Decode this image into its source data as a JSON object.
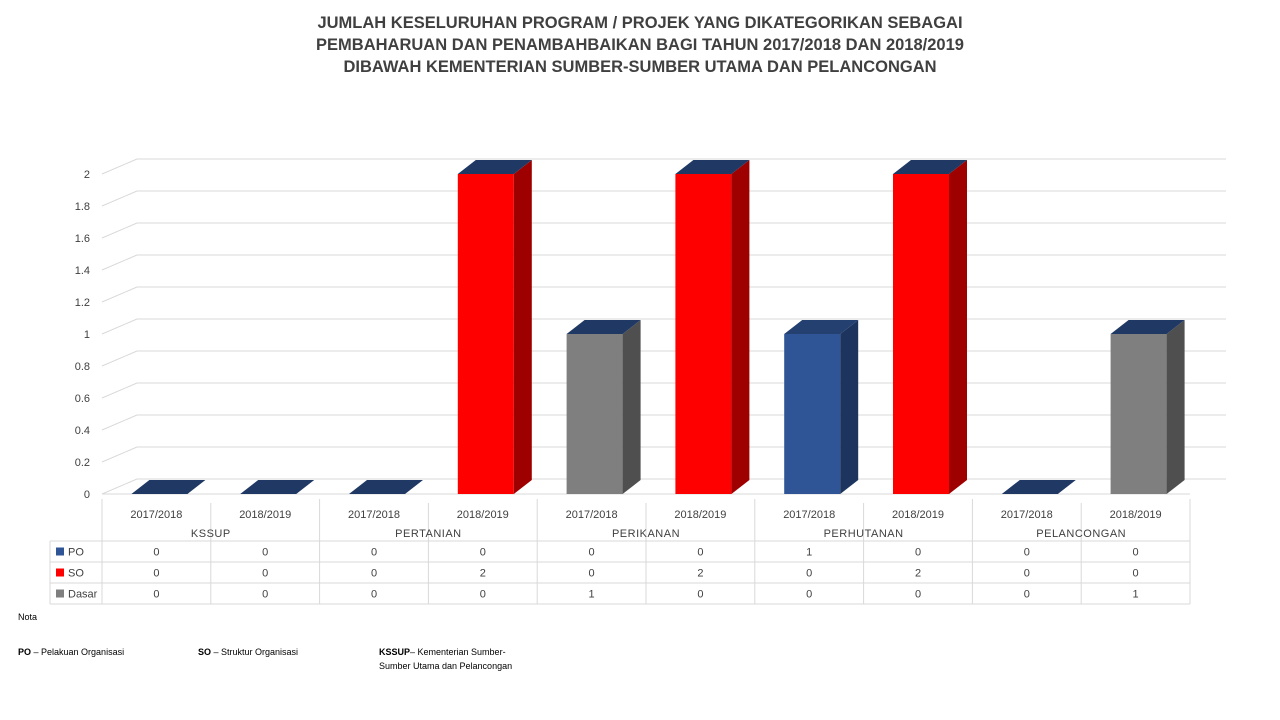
{
  "chart_data": {
    "type": "bar",
    "title_lines": [
      "JUMLAH KESELURUHAN PROGRAM / PROJEK  YANG DIKATEGORIKAN SEBAGAI",
      "PEMBAHARUAN DAN PENAMBAHBAIKAN BAGI TAHUN 2017/2018 DAN 2018/2019",
      "DIBAWAH KEMENTERIAN SUMBER-SUMBER UTAMA DAN PELANCONGAN"
    ],
    "groups": [
      "KSSUP",
      "PERTANIAN",
      "PERIKANAN",
      "PERHUTANAN",
      "PELANCONGAN"
    ],
    "categories": [
      "2017/2018",
      "2018/2019",
      "2017/2018",
      "2018/2019",
      "2017/2018",
      "2018/2019",
      "2017/2018",
      "2018/2019",
      "2017/2018",
      "2018/2019"
    ],
    "series": [
      {
        "name": "PO",
        "color": "#2f5597",
        "values": [
          0,
          0,
          0,
          0,
          0,
          0,
          1,
          0,
          0,
          0
        ]
      },
      {
        "name": "SO",
        "color": "#ff0000",
        "values": [
          0,
          0,
          0,
          2,
          0,
          2,
          0,
          2,
          0,
          0
        ]
      },
      {
        "name": "Dasar",
        "color": "#7f7f7f",
        "values": [
          0,
          0,
          0,
          0,
          1,
          0,
          0,
          0,
          0,
          1
        ]
      }
    ],
    "y_ticks": [
      "0",
      "0.2",
      "0.4",
      "0.6",
      "0.8",
      "1",
      "1.2",
      "1.4",
      "1.6",
      "1.8",
      "2"
    ],
    "ylim": [
      0,
      2
    ],
    "grid": true,
    "legend": "data-table"
  },
  "notes": {
    "title": "Nota",
    "po_abbr": "PO",
    "po_text": " – Pelakuan Organisasi",
    "so_abbr": "SO",
    "so_text": " – Struktur Organisasi",
    "kssup_abbr": "KSSUP",
    "kssup_text_1": "– Kementerian Sumber-",
    "kssup_text_2": "Sumber Utama dan Pelancongan"
  }
}
